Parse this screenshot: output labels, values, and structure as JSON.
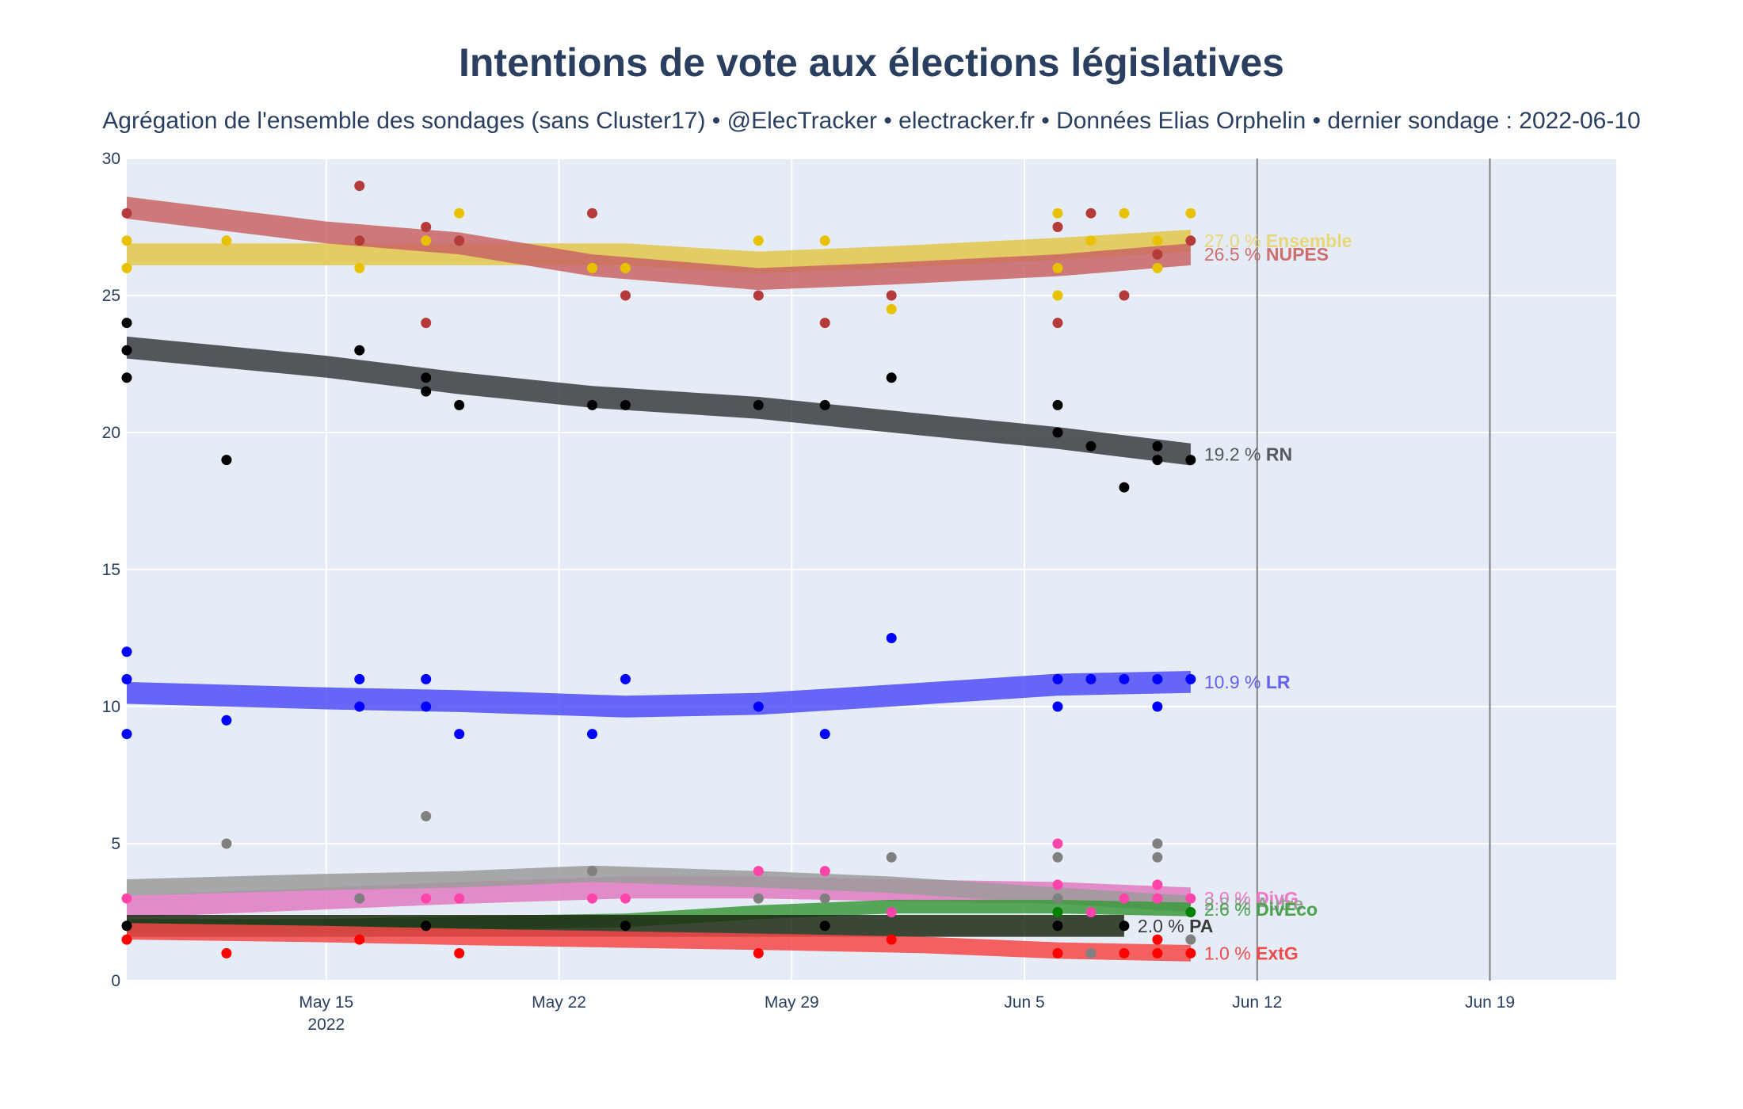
{
  "chart_data": {
    "type": "line",
    "title": "Intentions de vote aux élections législatives",
    "subtitle": "Agrégation de l'ensemble des sondages (sans Cluster17) • @ElecTracker • electracker.fr • Données Elias Orphelin • dernier sondage : 2022-06-10",
    "xlabel": "",
    "ylabel": "",
    "x_axis": {
      "type": "date",
      "range_days": [
        0,
        44.8
      ],
      "ticks": [
        {
          "day": 6,
          "label": "May 15",
          "sublabel": "2022"
        },
        {
          "day": 13,
          "label": "May 22",
          "sublabel": ""
        },
        {
          "day": 20,
          "label": "May 29",
          "sublabel": ""
        },
        {
          "day": 27,
          "label": "Jun 5",
          "sublabel": ""
        },
        {
          "day": 34,
          "label": "Jun 12",
          "sublabel": ""
        },
        {
          "day": 41,
          "label": "Jun 19",
          "sublabel": ""
        }
      ],
      "day_zero": "2022-05-09",
      "vertical_lines_days": [
        34,
        41
      ]
    },
    "ylim": [
      0,
      30
    ],
    "y_ticks": [
      0,
      5,
      10,
      15,
      20,
      25,
      30
    ],
    "series": [
      {
        "name": "Ensemble",
        "end_label": "27.0 % Ensemble",
        "end_value": "27.0 %",
        "color": "#e8c200",
        "band_color": "#e3c74a",
        "label_color": "#e8d77a",
        "trend": [
          [
            0,
            26.5
          ],
          [
            6,
            26.5
          ],
          [
            10,
            26.5
          ],
          [
            15,
            26.5
          ],
          [
            19,
            26.2
          ],
          [
            23,
            26.4
          ],
          [
            28,
            26.7
          ],
          [
            32,
            27.0
          ]
        ],
        "band_half": 0.4,
        "points": [
          [
            0,
            27
          ],
          [
            0,
            26
          ],
          [
            3,
            27
          ],
          [
            7,
            26
          ],
          [
            7,
            27
          ],
          [
            9,
            27
          ],
          [
            10,
            28
          ],
          [
            14,
            26
          ],
          [
            15,
            26
          ],
          [
            19,
            27
          ],
          [
            21,
            27
          ],
          [
            23,
            24.5
          ],
          [
            28,
            28
          ],
          [
            28,
            26
          ],
          [
            28,
            25
          ],
          [
            29,
            27
          ],
          [
            30,
            28
          ],
          [
            31,
            27
          ],
          [
            31,
            26
          ],
          [
            32,
            28
          ]
        ]
      },
      {
        "name": "NUPES",
        "end_label": "26.5 % NUPES",
        "end_value": "26.5 %",
        "color": "#b53a3a",
        "band_color": "#c96464",
        "label_color": "#cd6f6f",
        "trend": [
          [
            0,
            28.2
          ],
          [
            6,
            27.3
          ],
          [
            10,
            26.9
          ],
          [
            14,
            26.1
          ],
          [
            19,
            25.6
          ],
          [
            23,
            25.8
          ],
          [
            28,
            26.1
          ],
          [
            32,
            26.5
          ]
        ],
        "band_half": 0.4,
        "points": [
          [
            0,
            28
          ],
          [
            7,
            29
          ],
          [
            7,
            27
          ],
          [
            9,
            27.5
          ],
          [
            9,
            24
          ],
          [
            10,
            27
          ],
          [
            14,
            28
          ],
          [
            15,
            25
          ],
          [
            19,
            25
          ],
          [
            21,
            24
          ],
          [
            23,
            25
          ],
          [
            28,
            27.5
          ],
          [
            28,
            24
          ],
          [
            29,
            28
          ],
          [
            30,
            25
          ],
          [
            31,
            26.5
          ],
          [
            32,
            27
          ]
        ]
      },
      {
        "name": "RN",
        "end_label": "19.2 % RN",
        "end_value": "19.2 %",
        "color": "#000000",
        "band_color": "#3a3d40",
        "label_color": "#55595e",
        "trend": [
          [
            0,
            23.1
          ],
          [
            6,
            22.4
          ],
          [
            10,
            21.8
          ],
          [
            14,
            21.3
          ],
          [
            19,
            20.9
          ],
          [
            23,
            20.4
          ],
          [
            28,
            19.8
          ],
          [
            32,
            19.2
          ]
        ],
        "band_half": 0.4,
        "points": [
          [
            0,
            24
          ],
          [
            0,
            23
          ],
          [
            0,
            22
          ],
          [
            3,
            19
          ],
          [
            7,
            23
          ],
          [
            9,
            22
          ],
          [
            9,
            21.5
          ],
          [
            10,
            21
          ],
          [
            14,
            21
          ],
          [
            15,
            21
          ],
          [
            19,
            21
          ],
          [
            21,
            21
          ],
          [
            23,
            22
          ],
          [
            28,
            21
          ],
          [
            28,
            20
          ],
          [
            29,
            19.5
          ],
          [
            30,
            18
          ],
          [
            31,
            19
          ],
          [
            31,
            19.5
          ],
          [
            32,
            19
          ]
        ]
      },
      {
        "name": "LR",
        "end_label": "10.9 % LR",
        "end_value": "10.9 %",
        "color": "#0000ff",
        "band_color": "#4f4ff7",
        "label_color": "#6262f2",
        "trend": [
          [
            0,
            10.5
          ],
          [
            6,
            10.3
          ],
          [
            10,
            10.2
          ],
          [
            15,
            10.0
          ],
          [
            19,
            10.1
          ],
          [
            23,
            10.4
          ],
          [
            28,
            10.8
          ],
          [
            32,
            10.9
          ]
        ],
        "band_half": 0.4,
        "points": [
          [
            0,
            12
          ],
          [
            0,
            11
          ],
          [
            0,
            9
          ],
          [
            3,
            9.5
          ],
          [
            7,
            11
          ],
          [
            7,
            10
          ],
          [
            9,
            11
          ],
          [
            9,
            10
          ],
          [
            10,
            9
          ],
          [
            14,
            9
          ],
          [
            15,
            11
          ],
          [
            19,
            10
          ],
          [
            21,
            9
          ],
          [
            23,
            12.5
          ],
          [
            28,
            11
          ],
          [
            28,
            10
          ],
          [
            29,
            11
          ],
          [
            30,
            11
          ],
          [
            31,
            11
          ],
          [
            31,
            10
          ],
          [
            32,
            11
          ]
        ]
      },
      {
        "name": "DivGauche",
        "end_label": "3.0 % DivG",
        "end_value": "3.0 %",
        "color": "#ff44aa",
        "band_color": "#e07ac0",
        "label_color": "#ee77c6",
        "trend": [
          [
            0,
            2.7
          ],
          [
            6,
            3.0
          ],
          [
            10,
            3.2
          ],
          [
            15,
            3.4
          ],
          [
            19,
            3.4
          ],
          [
            23,
            3.3
          ],
          [
            28,
            3.2
          ],
          [
            32,
            3.0
          ]
        ],
        "band_half": 0.4,
        "points": [
          [
            0,
            3
          ],
          [
            7,
            3
          ],
          [
            9,
            3
          ],
          [
            10,
            3
          ],
          [
            14,
            3
          ],
          [
            15,
            3
          ],
          [
            19,
            4
          ],
          [
            21,
            4
          ],
          [
            23,
            2.5
          ],
          [
            28,
            5
          ],
          [
            28,
            3.5
          ],
          [
            29,
            2.5
          ],
          [
            30,
            3
          ],
          [
            31,
            3.5
          ],
          [
            31,
            3
          ],
          [
            32,
            3
          ]
        ]
      },
      {
        "name": "Autre",
        "end_label": "2.8 % Autre",
        "end_value": "2.8 %",
        "color": "#808080",
        "band_color": "#9b9b9b",
        "label_color": "#9d9d9d",
        "trend": [
          [
            0,
            3.4
          ],
          [
            6,
            3.6
          ],
          [
            10,
            3.7
          ],
          [
            14,
            3.9
          ],
          [
            19,
            3.7
          ],
          [
            23,
            3.5
          ],
          [
            28,
            3.1
          ],
          [
            32,
            2.8
          ]
        ],
        "band_half": 0.3,
        "points": [
          [
            3,
            5
          ],
          [
            7,
            3
          ],
          [
            9,
            6
          ],
          [
            14,
            4
          ],
          [
            19,
            3
          ],
          [
            21,
            3
          ],
          [
            23,
            4.5
          ],
          [
            28,
            4.5
          ],
          [
            28,
            3
          ],
          [
            28,
            1
          ],
          [
            29,
            1
          ],
          [
            31,
            5
          ],
          [
            31,
            4.5
          ],
          [
            32,
            1.5
          ]
        ]
      },
      {
        "name": "DivEco",
        "end_label": "2.6 % DivEco",
        "end_value": "2.6 %",
        "color": "#008000",
        "band_color": "#3c9a3c",
        "label_color": "#4aa34a",
        "trend": [
          [
            0,
            2.0
          ],
          [
            6,
            2.0
          ],
          [
            10,
            2.1
          ],
          [
            15,
            2.2
          ],
          [
            19,
            2.5
          ],
          [
            23,
            2.7
          ],
          [
            28,
            2.7
          ],
          [
            32,
            2.6
          ]
        ],
        "band_half": 0.25,
        "points": [
          [
            28,
            2.5
          ],
          [
            30,
            1
          ],
          [
            32,
            2.5
          ]
        ]
      },
      {
        "name": "PA",
        "end_label": "2.0 % PA",
        "end_value": "2.0 %",
        "color": "#000000",
        "band_color": "#1c2a12",
        "label_color": "#3c3c3c",
        "trend": [
          [
            0,
            2.0
          ],
          [
            6,
            2.0
          ],
          [
            10,
            2.0
          ],
          [
            15,
            2.0
          ],
          [
            19,
            2.0
          ],
          [
            23,
            2.0
          ],
          [
            28,
            2.0
          ],
          [
            30,
            2.0
          ]
        ],
        "band_half": 0.4,
        "points": [
          [
            0,
            2
          ],
          [
            9,
            2
          ],
          [
            15,
            2
          ],
          [
            21,
            2
          ],
          [
            28,
            2
          ],
          [
            30,
            2
          ]
        ]
      },
      {
        "name": "ExtG",
        "end_label": "1.0 % ExtG",
        "end_value": "1.0 %",
        "color": "#ff0000",
        "band_color": "#f44848",
        "label_color": "#ef4b4b",
        "trend": [
          [
            0,
            1.8
          ],
          [
            6,
            1.7
          ],
          [
            10,
            1.6
          ],
          [
            15,
            1.5
          ],
          [
            20,
            1.4
          ],
          [
            24,
            1.3
          ],
          [
            28,
            1.1
          ],
          [
            32,
            1.0
          ]
        ],
        "band_half": 0.3,
        "points": [
          [
            0,
            1.5
          ],
          [
            3,
            1
          ],
          [
            7,
            1.5
          ],
          [
            10,
            1
          ],
          [
            19,
            1
          ],
          [
            23,
            1.5
          ],
          [
            28,
            1
          ],
          [
            30,
            1
          ],
          [
            31,
            1
          ],
          [
            31,
            1.5
          ],
          [
            32,
            1
          ]
        ]
      }
    ]
  }
}
